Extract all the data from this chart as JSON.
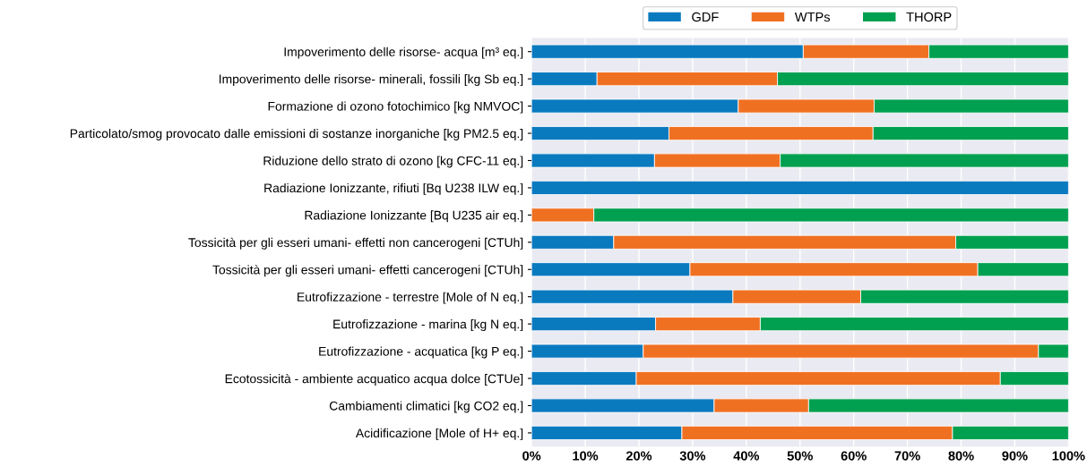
{
  "chart_data": {
    "type": "bar",
    "orientation": "horizontal",
    "stacked": true,
    "categories": [
      "Impoverimento delle risorse- acqua [m³ eq.]",
      "Impoverimento delle risorse- minerali, fossili [kg Sb eq.]",
      "Formazione di ozono fotochimico [kg NMVOC]",
      "Particolato/smog provocato dalle emissioni di sostanze inorganiche [kg PM2.5 eq.]",
      "Riduzione dello strato di ozono [kg CFC-11 eq.]",
      "Radiazione Ionizzante, rifiuti [Bq U238 ILW eq.]",
      "Radiazione Ionizzante [Bq U235 air eq.]",
      "Tossicità per gli esseri umani- effetti non cancerogeni [CTUh]",
      "Tossicità per gli esseri umani- effetti cancerogeni [CTUh]",
      "Eutrofizzazione - terrestre [Mole of N eq.]",
      "Eutrofizzazione - marina [kg N eq.]",
      "Eutrofizzazione - acquatica [kg P eq.]",
      "Ecotossicità - ambiente acquatico acqua dolce [CTUe]",
      "Cambiamenti climatici [kg CO2 eq.]",
      "Acidificazione [Mole of H+ eq.]"
    ],
    "series": [
      {
        "name": "GDF",
        "color": "#0a7abf",
        "values": [
          50.6,
          12.2,
          38.5,
          25.6,
          22.9,
          100,
          0,
          15.3,
          29.5,
          37.5,
          23.1,
          20.8,
          19.5,
          34.0,
          28.0
        ]
      },
      {
        "name": "WTPs",
        "color": "#f07022",
        "values": [
          23.4,
          33.6,
          25.3,
          38.0,
          23.4,
          0,
          11.6,
          63.7,
          53.6,
          23.8,
          19.5,
          73.6,
          67.8,
          17.6,
          50.4
        ]
      },
      {
        "name": "THORP",
        "color": "#00a050",
        "values": [
          26.0,
          54.2,
          36.2,
          36.4,
          53.7,
          0,
          88.4,
          21.0,
          16.9,
          38.7,
          57.4,
          5.6,
          12.7,
          48.4,
          21.6
        ]
      }
    ],
    "xlim": [
      0,
      100
    ],
    "xticks": [
      {
        "value": 0,
        "label": "0%"
      },
      {
        "value": 10,
        "label": "10%"
      },
      {
        "value": 20,
        "label": "20%"
      },
      {
        "value": 30,
        "label": "30%"
      },
      {
        "value": 40,
        "label": "40%"
      },
      {
        "value": 50,
        "label": "50%"
      },
      {
        "value": 60,
        "label": "60%"
      },
      {
        "value": 70,
        "label": "70%"
      },
      {
        "value": 80,
        "label": "80%"
      },
      {
        "value": 90,
        "label": "90%"
      },
      {
        "value": 100,
        "label": "100%"
      }
    ],
    "grid": "x",
    "legend": "top"
  }
}
